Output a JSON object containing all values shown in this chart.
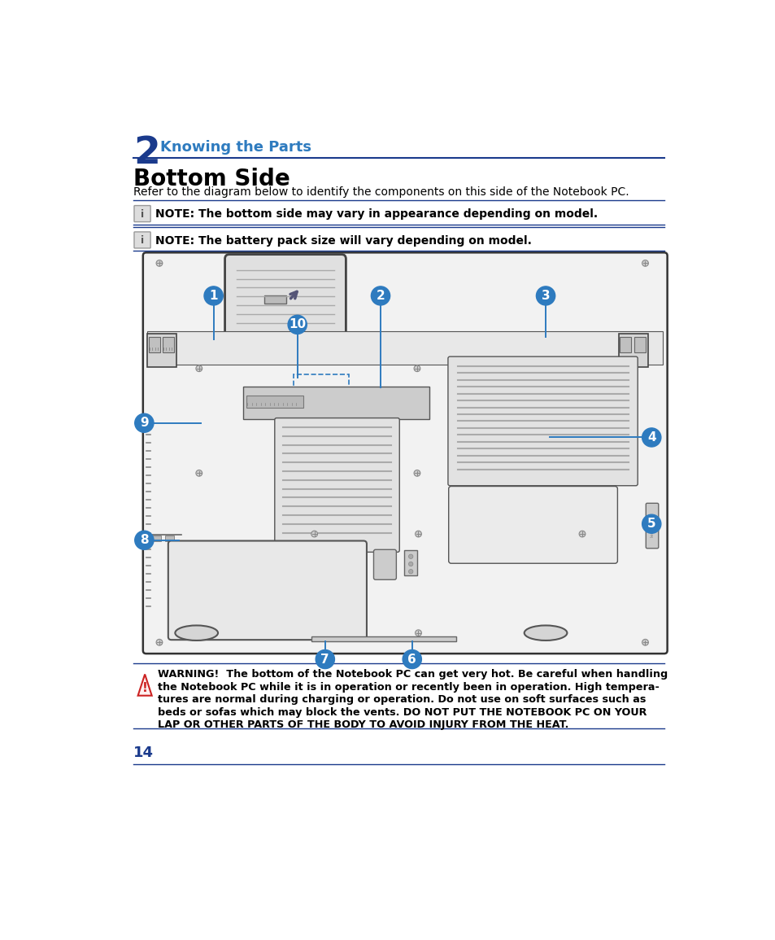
{
  "chapter_num": "2",
  "chapter_title": "Knowing the Parts",
  "section_title": "Bottom Side",
  "subtitle": "Refer to the diagram below to identify the components on this side of the Notebook PC.",
  "note1": "NOTE: The bottom side may vary in appearance depending on model.",
  "note2": "NOTE: The battery pack size will vary depending on model.",
  "warn_lines": [
    "WARNING!  The bottom of the Notebook PC can get very hot. Be careful when handling",
    "the Notebook PC while it is in operation or recently been in operation. High tempera-",
    "tures are normal during charging or operation. Do not use on soft surfaces such as",
    "beds or sofas which may block the vents. DO NOT PUT THE NOTEBOOK PC ON YOUR",
    "LAP OR OTHER PARTS OF THE BODY TO AVOID INJURY FROM THE HEAT."
  ],
  "page_num": "14",
  "blue_color": "#1a3a8c",
  "circle_blue": "#2e7bbf",
  "bg_color": "#ffffff"
}
